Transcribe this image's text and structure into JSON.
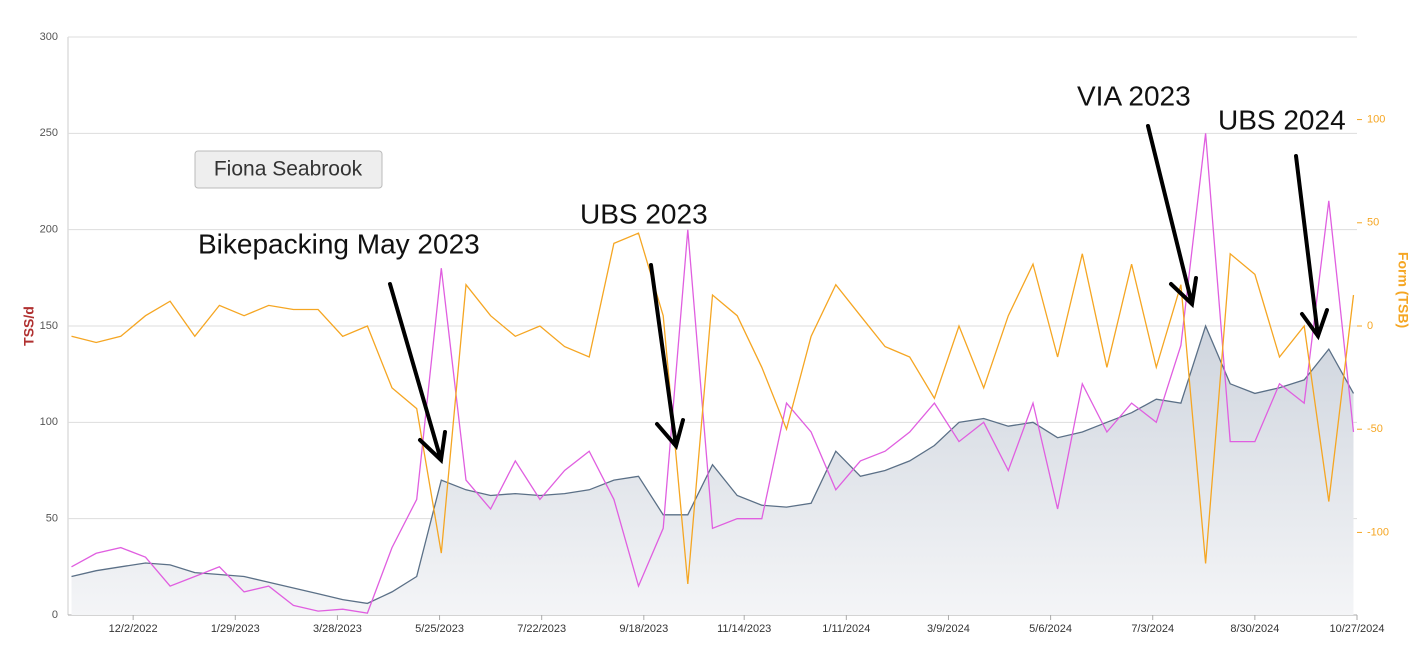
{
  "chart_data": {
    "type": "line",
    "athlete": "Fiona Seabrook",
    "ylabel": "TSS/d",
    "y2label": "Form (TSB)",
    "x": [
      "10/28/2022",
      "11/11/2022",
      "11/25/2022",
      "12/9/2022",
      "12/23/2022",
      "1/6/2023",
      "1/20/2023",
      "2/3/2023",
      "2/17/2023",
      "3/3/2023",
      "3/17/2023",
      "3/31/2023",
      "4/14/2023",
      "4/28/2023",
      "5/12/2023",
      "5/26/2023",
      "6/9/2023",
      "6/23/2023",
      "7/7/2023",
      "7/21/2023",
      "8/4/2023",
      "8/18/2023",
      "9/1/2023",
      "9/15/2023",
      "9/29/2023",
      "10/13/2023",
      "10/27/2023",
      "11/10/2023",
      "11/24/2023",
      "12/8/2023",
      "12/22/2023",
      "1/5/2024",
      "1/19/2024",
      "2/2/2024",
      "2/16/2024",
      "3/1/2024",
      "3/15/2024",
      "3/29/2024",
      "4/12/2024",
      "4/26/2024",
      "5/10/2024",
      "5/24/2024",
      "6/7/2024",
      "6/21/2024",
      "7/5/2024",
      "7/19/2024",
      "8/2/2024",
      "8/16/2024",
      "8/30/2024",
      "9/13/2024",
      "9/27/2024",
      "10/11/2024",
      "10/25/2024"
    ],
    "series": [
      {
        "color": "#5b7087",
        "area": true,
        "axis": "y",
        "values": [
          20,
          23,
          25,
          27,
          26,
          22,
          21,
          20,
          17,
          14,
          11,
          8,
          6,
          12,
          20,
          70,
          65,
          62,
          63,
          62,
          63,
          65,
          70,
          72,
          52,
          52,
          78,
          62,
          57,
          56,
          58,
          85,
          72,
          75,
          80,
          88,
          100,
          102,
          98,
          100,
          92,
          95,
          100,
          105,
          112,
          110,
          150,
          120,
          115,
          118,
          122,
          138,
          115
        ]
      },
      {
        "color": "#e05fe0",
        "area": false,
        "axis": "y",
        "values": [
          25,
          32,
          35,
          30,
          15,
          20,
          25,
          12,
          15,
          5,
          2,
          3,
          1,
          35,
          60,
          180,
          70,
          55,
          80,
          60,
          75,
          85,
          60,
          15,
          45,
          200,
          45,
          50,
          50,
          110,
          95,
          65,
          80,
          85,
          95,
          110,
          90,
          100,
          75,
          110,
          55,
          120,
          95,
          110,
          100,
          140,
          250,
          90,
          90,
          120,
          110,
          215,
          95
        ]
      },
      {
        "color": "#f5a623",
        "area": false,
        "axis": "y2",
        "values": [
          -5,
          -8,
          -5,
          5,
          12,
          -5,
          10,
          5,
          10,
          8,
          8,
          -5,
          0,
          -30,
          -40,
          -110,
          20,
          5,
          -5,
          0,
          -10,
          -15,
          40,
          45,
          5,
          -125,
          15,
          5,
          -20,
          -50,
          -5,
          20,
          5,
          -10,
          -15,
          -35,
          0,
          -30,
          5,
          30,
          -15,
          35,
          -20,
          30,
          -20,
          20,
          -115,
          35,
          25,
          -15,
          0,
          -85,
          15
        ]
      }
    ],
    "xlim": [
      "10/26/2022",
      "10/27/2024"
    ],
    "xticks": [
      "12/2/2022",
      "1/29/2023",
      "3/28/2023",
      "5/25/2023",
      "7/22/2023",
      "9/18/2023",
      "11/14/2023",
      "1/11/2024",
      "3/9/2024",
      "5/6/2024",
      "7/3/2024",
      "8/30/2024",
      "10/27/2024"
    ],
    "ylim": [
      0,
      300
    ],
    "yticks": [
      0,
      50,
      100,
      150,
      200,
      250,
      300
    ],
    "y2lim": [
      -140,
      140
    ],
    "y2ticks": [
      -100,
      -50,
      0,
      50,
      100
    ],
    "grid": true,
    "annotations": [
      "Bikepacking May 2023",
      "UBS 2023",
      "VIA 2023",
      "UBS 2024"
    ]
  }
}
